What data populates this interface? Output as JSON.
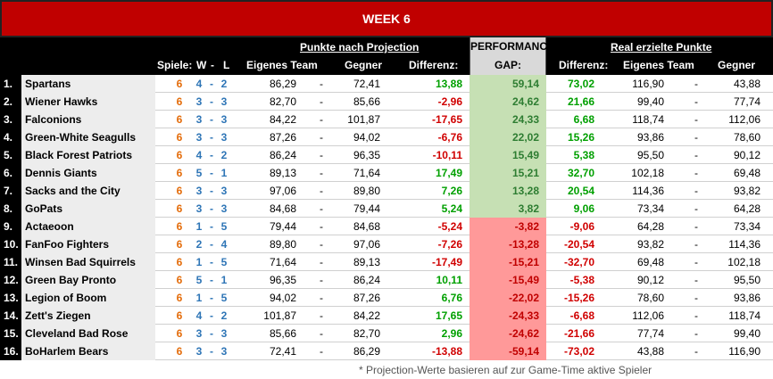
{
  "title": "WEEK 6",
  "headers": {
    "projection_group": "Punkte nach Projection",
    "performance_line1": "PERFORMANCE",
    "performance_line2": "GAP:",
    "real_group": "Real erzielte Punkte",
    "spiele": "Spiele:",
    "w": "W",
    "dash": "-",
    "l": "L",
    "eigenes_team": "Eigenes Team",
    "gegner": "Gegner",
    "differenz": "Differenz:"
  },
  "rows": [
    {
      "rank": "1.",
      "team": "Spartans",
      "games": "6",
      "w": "4",
      "l": "2",
      "proj_own": "86,29",
      "proj_opp": "72,41",
      "proj_diff": "13,88",
      "gap": "59,14",
      "real_diff": "73,02",
      "real_own": "116,90",
      "real_opp": "43,88"
    },
    {
      "rank": "2.",
      "team": "Wiener Hawks",
      "games": "6",
      "w": "3",
      "l": "3",
      "proj_own": "82,70",
      "proj_opp": "85,66",
      "proj_diff": "-2,96",
      "gap": "24,62",
      "real_diff": "21,66",
      "real_own": "99,40",
      "real_opp": "77,74"
    },
    {
      "rank": "3.",
      "team": "Falconions",
      "games": "6",
      "w": "3",
      "l": "3",
      "proj_own": "84,22",
      "proj_opp": "101,87",
      "proj_diff": "-17,65",
      "gap": "24,33",
      "real_diff": "6,68",
      "real_own": "118,74",
      "real_opp": "112,06"
    },
    {
      "rank": "4.",
      "team": "Green-White Seagulls",
      "games": "6",
      "w": "3",
      "l": "3",
      "proj_own": "87,26",
      "proj_opp": "94,02",
      "proj_diff": "-6,76",
      "gap": "22,02",
      "real_diff": "15,26",
      "real_own": "93,86",
      "real_opp": "78,60"
    },
    {
      "rank": "5.",
      "team": "Black Forest Patriots",
      "games": "6",
      "w": "4",
      "l": "2",
      "proj_own": "86,24",
      "proj_opp": "96,35",
      "proj_diff": "-10,11",
      "gap": "15,49",
      "real_diff": "5,38",
      "real_own": "95,50",
      "real_opp": "90,12"
    },
    {
      "rank": "6.",
      "team": "Dennis Giants",
      "games": "6",
      "w": "5",
      "l": "1",
      "proj_own": "89,13",
      "proj_opp": "71,64",
      "proj_diff": "17,49",
      "gap": "15,21",
      "real_diff": "32,70",
      "real_own": "102,18",
      "real_opp": "69,48"
    },
    {
      "rank": "7.",
      "team": "Sacks and the City",
      "games": "6",
      "w": "3",
      "l": "3",
      "proj_own": "97,06",
      "proj_opp": "89,80",
      "proj_diff": "7,26",
      "gap": "13,28",
      "real_diff": "20,54",
      "real_own": "114,36",
      "real_opp": "93,82"
    },
    {
      "rank": "8.",
      "team": "GoPats",
      "games": "6",
      "w": "3",
      "l": "3",
      "proj_own": "84,68",
      "proj_opp": "79,44",
      "proj_diff": "5,24",
      "gap": "3,82",
      "real_diff": "9,06",
      "real_own": "73,34",
      "real_opp": "64,28"
    },
    {
      "rank": "9.",
      "team": "Actaeoon",
      "games": "6",
      "w": "1",
      "l": "5",
      "proj_own": "79,44",
      "proj_opp": "84,68",
      "proj_diff": "-5,24",
      "gap": "-3,82",
      "real_diff": "-9,06",
      "real_own": "64,28",
      "real_opp": "73,34"
    },
    {
      "rank": "10.",
      "team": "FanFoo Fighters",
      "games": "6",
      "w": "2",
      "l": "4",
      "proj_own": "89,80",
      "proj_opp": "97,06",
      "proj_diff": "-7,26",
      "gap": "-13,28",
      "real_diff": "-20,54",
      "real_own": "93,82",
      "real_opp": "114,36"
    },
    {
      "rank": "11.",
      "team": "Winsen Bad Squirrels",
      "games": "6",
      "w": "1",
      "l": "5",
      "proj_own": "71,64",
      "proj_opp": "89,13",
      "proj_diff": "-17,49",
      "gap": "-15,21",
      "real_diff": "-32,70",
      "real_own": "69,48",
      "real_opp": "102,18"
    },
    {
      "rank": "12.",
      "team": "Green Bay Pronto",
      "games": "6",
      "w": "5",
      "l": "1",
      "proj_own": "96,35",
      "proj_opp": "86,24",
      "proj_diff": "10,11",
      "gap": "-15,49",
      "real_diff": "-5,38",
      "real_own": "90,12",
      "real_opp": "95,50"
    },
    {
      "rank": "13.",
      "team": "Legion of Boom",
      "games": "6",
      "w": "1",
      "l": "5",
      "proj_own": "94,02",
      "proj_opp": "87,26",
      "proj_diff": "6,76",
      "gap": "-22,02",
      "real_diff": "-15,26",
      "real_own": "78,60",
      "real_opp": "93,86"
    },
    {
      "rank": "14.",
      "team": "Zett's Ziegen",
      "games": "6",
      "w": "4",
      "l": "2",
      "proj_own": "101,87",
      "proj_opp": "84,22",
      "proj_diff": "17,65",
      "gap": "-24,33",
      "real_diff": "-6,68",
      "real_own": "112,06",
      "real_opp": "118,74"
    },
    {
      "rank": "15.",
      "team": "Cleveland Bad Rose",
      "games": "6",
      "w": "3",
      "l": "3",
      "proj_own": "85,66",
      "proj_opp": "82,70",
      "proj_diff": "2,96",
      "gap": "-24,62",
      "real_diff": "-21,66",
      "real_own": "77,74",
      "real_opp": "99,40"
    },
    {
      "rank": "16.",
      "team": "BoHarlem Bears",
      "games": "6",
      "w": "3",
      "l": "3",
      "proj_own": "72,41",
      "proj_opp": "86,29",
      "proj_diff": "-13,88",
      "gap": "-59,14",
      "real_diff": "-73,02",
      "real_own": "43,88",
      "real_opp": "116,90"
    }
  ],
  "footnote": "* Projection-Werte basieren auf zur Game-Time aktive Spieler",
  "colors": {
    "title_bg": "#c00000",
    "header_bg": "#000000",
    "gap_positive_bg": "#c6e0b4",
    "gap_negative_bg": "#ff9999",
    "games_color": "#e46c0a",
    "record_color": "#2e75b6",
    "positive_text": "#00a000",
    "negative_text": "#d00000"
  }
}
